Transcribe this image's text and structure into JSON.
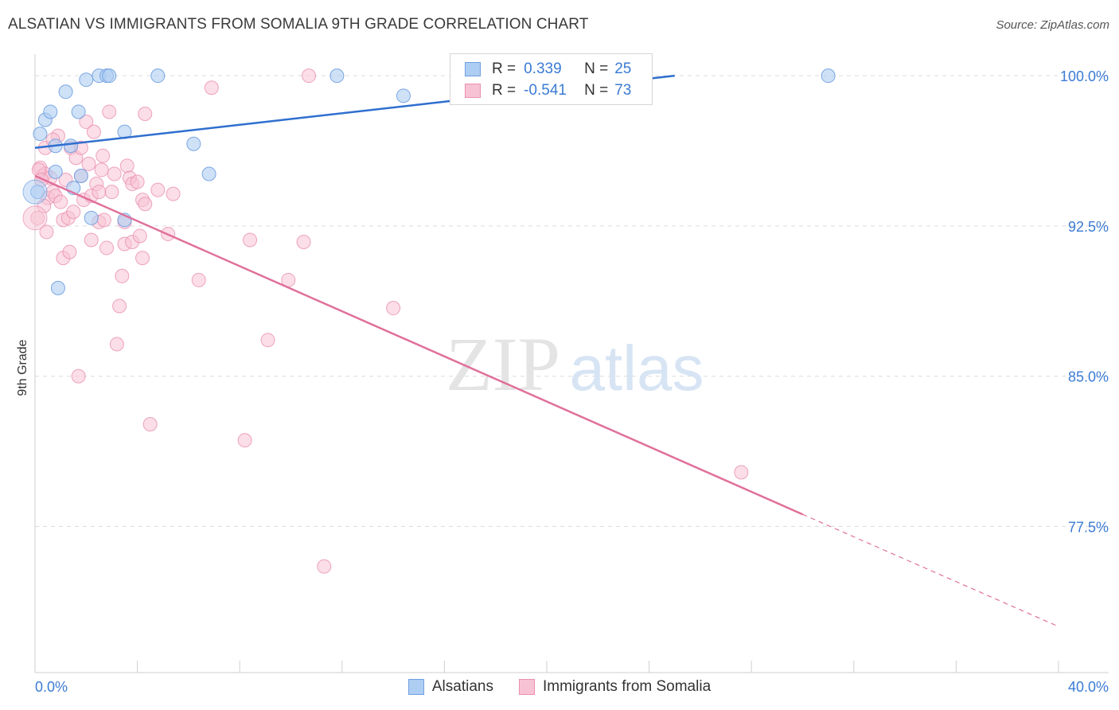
{
  "title": "ALSATIAN VS IMMIGRANTS FROM SOMALIA 9TH GRADE CORRELATION CHART",
  "source": "Source: ZipAtlas.com",
  "watermark": {
    "zip": "ZIP",
    "atlas": "atlas"
  },
  "legend": {
    "alsatians": {
      "r_label": "R =",
      "r_value": "0.339",
      "n_label": "N =",
      "n_value": "25"
    },
    "somalia": {
      "r_label": "R =",
      "r_value": "-0.541",
      "n_label": "N =",
      "n_value": "73"
    }
  },
  "colors": {
    "blue_fill": "#aecdf2",
    "blue_stroke": "#6f9fe0",
    "blue_line": "#2f6fcf",
    "pink_fill": "#f7c3d4",
    "pink_stroke": "#ea8fb0",
    "pink_line": "#e0709a",
    "tick_text": "#3b7bd4"
  },
  "chart_data": {
    "type": "scatter",
    "xlabel": "",
    "ylabel": "9th Grade",
    "xlim": [
      0,
      40
    ],
    "ylim": [
      70.2,
      101.0
    ],
    "x_tick_labels": [
      "0.0%",
      "40.0%"
    ],
    "y_ticks": [
      100.0,
      92.5,
      85.0,
      77.5
    ],
    "y_tick_labels": [
      "100.0%",
      "92.5%",
      "85.0%",
      "77.5%"
    ],
    "series": [
      {
        "name": "Alsatians",
        "points": [
          [
            0.1,
            94.2
          ],
          [
            0.2,
            97.1
          ],
          [
            0.4,
            97.8
          ],
          [
            0.6,
            98.2
          ],
          [
            0.8,
            96.5
          ],
          [
            0.8,
            95.2
          ],
          [
            0.9,
            89.4
          ],
          [
            1.2,
            99.2
          ],
          [
            1.4,
            96.5
          ],
          [
            1.5,
            94.4
          ],
          [
            1.7,
            98.2
          ],
          [
            1.8,
            95.0
          ],
          [
            2.2,
            92.9
          ],
          [
            2.0,
            99.8
          ],
          [
            2.5,
            100.0
          ],
          [
            2.8,
            100.0
          ],
          [
            2.9,
            100.0
          ],
          [
            3.5,
            92.8
          ],
          [
            3.5,
            97.2
          ],
          [
            4.8,
            100.0
          ],
          [
            6.2,
            96.6
          ],
          [
            6.8,
            95.1
          ],
          [
            11.8,
            100.0
          ],
          [
            14.4,
            99.0
          ],
          [
            31.0,
            100.0
          ]
        ],
        "trend": {
          "x": [
            0,
            25.0
          ],
          "y": [
            96.4,
            100.0
          ],
          "style": "solid"
        }
      },
      {
        "name": "Immigrants from Somalia",
        "points": [
          [
            0.1,
            92.9
          ],
          [
            0.2,
            95.4
          ],
          [
            0.3,
            95.0
          ],
          [
            0.4,
            96.4
          ],
          [
            0.4,
            95.1
          ],
          [
            0.5,
            93.9
          ],
          [
            0.6,
            94.9
          ],
          [
            0.7,
            94.2
          ],
          [
            0.8,
            94.0
          ],
          [
            0.9,
            97.0
          ],
          [
            1.0,
            93.7
          ],
          [
            1.1,
            90.9
          ],
          [
            1.1,
            92.8
          ],
          [
            1.2,
            94.8
          ],
          [
            1.3,
            92.9
          ],
          [
            1.4,
            96.4
          ],
          [
            1.5,
            93.2
          ],
          [
            1.6,
            95.9
          ],
          [
            1.7,
            85.0
          ],
          [
            1.8,
            96.4
          ],
          [
            1.8,
            95.0
          ],
          [
            1.9,
            93.8
          ],
          [
            2.0,
            97.7
          ],
          [
            2.1,
            95.6
          ],
          [
            2.2,
            94.0
          ],
          [
            2.2,
            91.8
          ],
          [
            2.3,
            97.2
          ],
          [
            2.4,
            94.6
          ],
          [
            2.5,
            92.7
          ],
          [
            2.5,
            94.2
          ],
          [
            2.6,
            95.3
          ],
          [
            2.7,
            92.8
          ],
          [
            2.8,
            91.4
          ],
          [
            2.9,
            98.2
          ],
          [
            3.0,
            94.2
          ],
          [
            3.1,
            95.1
          ],
          [
            3.2,
            86.6
          ],
          [
            3.3,
            88.5
          ],
          [
            3.4,
            90.0
          ],
          [
            3.5,
            91.6
          ],
          [
            3.5,
            92.7
          ],
          [
            3.6,
            95.5
          ],
          [
            3.7,
            94.9
          ],
          [
            3.8,
            91.7
          ],
          [
            3.8,
            94.6
          ],
          [
            4.0,
            94.7
          ],
          [
            4.1,
            92.0
          ],
          [
            4.2,
            90.9
          ],
          [
            4.2,
            93.8
          ],
          [
            4.3,
            93.6
          ],
          [
            4.3,
            98.1
          ],
          [
            4.5,
            82.6
          ],
          [
            4.8,
            94.3
          ],
          [
            5.2,
            92.1
          ],
          [
            5.4,
            94.1
          ],
          [
            6.4,
            89.8
          ],
          [
            6.9,
            99.4
          ],
          [
            8.2,
            81.8
          ],
          [
            8.4,
            91.8
          ],
          [
            9.1,
            86.8
          ],
          [
            9.9,
            89.8
          ],
          [
            10.5,
            91.7
          ],
          [
            10.7,
            100.0
          ],
          [
            11.3,
            75.5
          ],
          [
            14.0,
            88.4
          ],
          [
            27.6,
            80.2
          ],
          [
            0.15,
            95.3
          ],
          [
            0.25,
            94.8
          ],
          [
            0.35,
            93.5
          ],
          [
            0.45,
            92.2
          ],
          [
            1.35,
            91.2
          ],
          [
            0.7,
            96.8
          ],
          [
            2.65,
            96.0
          ]
        ],
        "trend": {
          "x": [
            0,
            30.0,
            40.0
          ],
          "y": [
            95.0,
            78.1,
            72.5
          ],
          "style": "solid-then-dashed"
        }
      }
    ]
  }
}
